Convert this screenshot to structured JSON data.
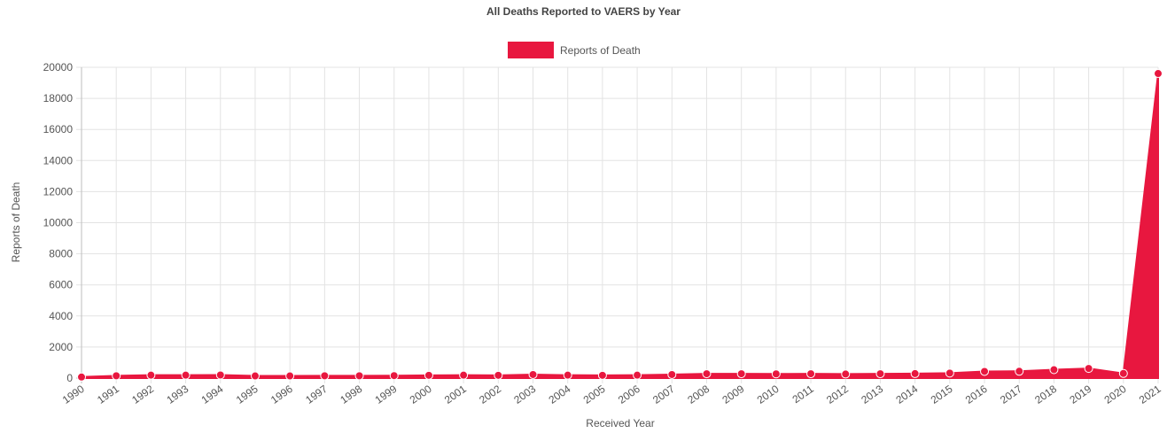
{
  "chart_data": {
    "type": "area",
    "title": "All Deaths Reported to VAERS by Year",
    "xlabel": "Received Year",
    "ylabel": "Reports of Death",
    "ylim": [
      0,
      20000
    ],
    "yticks": [
      0,
      2000,
      4000,
      6000,
      8000,
      10000,
      12000,
      14000,
      16000,
      18000,
      20000
    ],
    "grid": true,
    "legend_position": "top-center",
    "categories": [
      "1990",
      "1991",
      "1992",
      "1993",
      "1994",
      "1995",
      "1996",
      "1997",
      "1998",
      "1999",
      "2000",
      "2001",
      "2002",
      "2003",
      "2004",
      "2005",
      "2006",
      "2007",
      "2008",
      "2009",
      "2010",
      "2011",
      "2012",
      "2013",
      "2014",
      "2015",
      "2016",
      "2017",
      "2018",
      "2019",
      "2020",
      "2021"
    ],
    "series": [
      {
        "name": "Reports of Death",
        "color": "#e8173f",
        "values": [
          70,
          150,
          190,
          190,
          200,
          140,
          140,
          150,
          150,
          160,
          180,
          190,
          180,
          230,
          190,
          180,
          190,
          230,
          280,
          280,
          270,
          280,
          260,
          280,
          290,
          320,
          430,
          440,
          540,
          620,
          300,
          19600
        ]
      }
    ]
  }
}
